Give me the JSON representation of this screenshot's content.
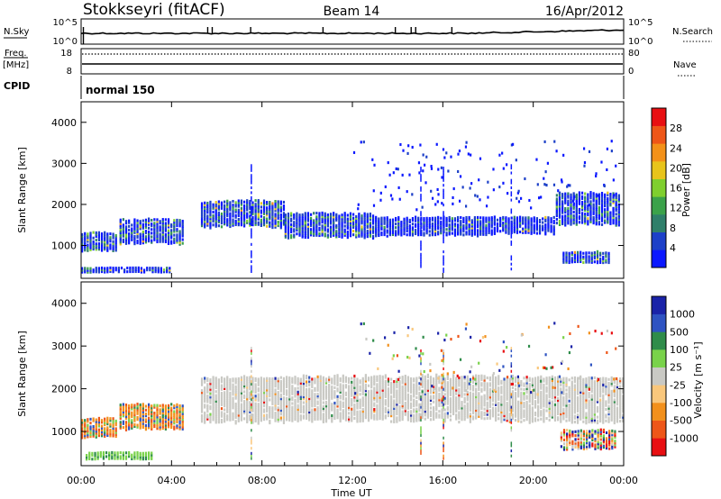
{
  "header": {
    "station": "Stokkseyri (fitACF)",
    "beam": "Beam 14",
    "date": "16/Apr/2012"
  },
  "top_panel": {
    "left_label": "N.Sky",
    "left_ticks": [
      "10^5",
      "10^0"
    ],
    "right_ticks": [
      "10^5",
      "10^0"
    ],
    "right_label": "N.Search"
  },
  "freq_panel": {
    "left_label_1": "Freq.",
    "left_label_2": "[MHz]",
    "left_ticks": [
      "18",
      "8"
    ],
    "right_ticks": [
      "80",
      "0"
    ],
    "right_label": "Nave",
    "cpid_label": "CPID"
  },
  "cpid_panel": {
    "mode": "normal 150"
  },
  "colors": {
    "power_scale": [
      "#0b18ff",
      "#1d40c8",
      "#2f7f6a",
      "#3ba24a",
      "#7fcf2e",
      "#e8c41b",
      "#f39119",
      "#ee5618",
      "#e80f12"
    ],
    "velocity_scale": [
      "#e80f12",
      "#ee5618",
      "#f2901c",
      "#f9c77c",
      "#c9c9c4",
      "#79d24a",
      "#2f8c4a",
      "#2e53c2",
      "#1a23a8"
    ],
    "ground_scatter": "#c9c9c4"
  },
  "chart_data": [
    {
      "type": "heatmap",
      "name": "power",
      "ylabel": "Slant Range [km]",
      "xlim": [
        "00:00",
        "24:00"
      ],
      "ylim": [
        200,
        4500
      ],
      "x_ticks": [
        "00:00",
        "04:00",
        "08:00",
        "12:00",
        "16:00",
        "20:00",
        "00:00"
      ],
      "y_ticks": [
        1000,
        2000,
        3000,
        4000
      ],
      "colorbar": {
        "label": "Power [dB]",
        "ticks": [
          4,
          8,
          12,
          16,
          20,
          24,
          28
        ],
        "range": [
          0,
          31
        ]
      },
      "regions": [
        {
          "t_start": 0.0,
          "t_end": 1.6,
          "r_low": 880,
          "r_high": 1350,
          "level": 0.35
        },
        {
          "t_start": 1.7,
          "t_end": 4.5,
          "r_low": 1050,
          "r_high": 1700,
          "level": 0.4
        },
        {
          "t_start": 5.3,
          "t_end": 9.0,
          "r_low": 1450,
          "r_high": 2150,
          "level": 0.45
        },
        {
          "t_start": 9.0,
          "t_end": 13.0,
          "r_low": 1200,
          "r_high": 1850,
          "level": 0.4
        },
        {
          "t_start": 13.0,
          "t_end": 18.0,
          "r_low": 1250,
          "r_high": 1750,
          "level": 0.15
        },
        {
          "t_start": 18.0,
          "t_end": 21.0,
          "r_low": 1300,
          "r_high": 1750,
          "level": 0.12
        },
        {
          "t_start": 21.0,
          "t_end": 23.8,
          "r_low": 1500,
          "r_high": 2350,
          "level": 0.35
        },
        {
          "t_start": 21.3,
          "t_end": 23.4,
          "r_low": 600,
          "r_high": 900,
          "level": 0.3
        },
        {
          "t_start": 0.0,
          "t_end": 4.0,
          "r_low": 380,
          "r_high": 520,
          "level": 0.2
        }
      ],
      "time_axis_label": "Time UT"
    },
    {
      "type": "heatmap",
      "name": "velocity",
      "ylabel": "Slant Range [km]",
      "xlim": [
        "00:00",
        "24:00"
      ],
      "ylim": [
        200,
        4500
      ],
      "x_ticks": [
        "00:00",
        "04:00",
        "08:00",
        "12:00",
        "16:00",
        "20:00",
        "00:00"
      ],
      "y_ticks": [
        1000,
        2000,
        3000,
        4000
      ],
      "xlabel": "Time UT",
      "colorbar": {
        "label": "Velocity [m s⁻¹]",
        "ticks": [
          "-1000",
          "-500",
          "-100",
          "-25",
          "25",
          "100",
          "500",
          "1000"
        ]
      },
      "regions": [
        {
          "t_start": 0.0,
          "t_end": 1.6,
          "r_low": 880,
          "r_high": 1350,
          "class": "negative"
        },
        {
          "t_start": 1.7,
          "t_end": 4.5,
          "r_low": 1050,
          "r_high": 1700,
          "class": "negative"
        },
        {
          "t_start": 0.2,
          "t_end": 3.2,
          "r_low": 380,
          "r_high": 560,
          "class": "positive"
        },
        {
          "t_start": 5.3,
          "t_end": 24.0,
          "r_low": 1200,
          "r_high": 2350,
          "class": "ground"
        },
        {
          "t_start": 21.2,
          "t_end": 23.6,
          "r_low": 600,
          "r_high": 1100,
          "class": "mixed"
        }
      ]
    }
  ]
}
